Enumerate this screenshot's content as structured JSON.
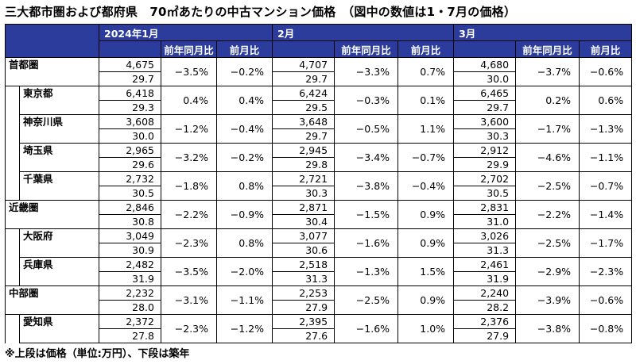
{
  "title": "三大都市圏および都府県　70㎡あたりの中古マンション価格　（図中の数値は1・7月の価格）",
  "note": "※上段は価格（単位:万円）、下段は築年",
  "header": {
    "months": [
      "2024年1月",
      "2月",
      "3月"
    ],
    "yoy": "前年同月比",
    "mom": "前月比"
  },
  "rows": [
    {
      "name": "首都圏",
      "level": "region",
      "m": [
        [
          "4,675",
          "29.7",
          "−3.5%",
          "−0.2%"
        ],
        [
          "4,707",
          "29.7",
          "−3.3%",
          "0.7%"
        ],
        [
          "4,680",
          "30.0",
          "−3.7%",
          "−0.6%"
        ]
      ]
    },
    {
      "name": "東京都",
      "level": "pref",
      "m": [
        [
          "6,418",
          "29.3",
          "0.4%",
          "0.4%"
        ],
        [
          "6,424",
          "29.5",
          "−0.3%",
          "0.1%"
        ],
        [
          "6,465",
          "29.7",
          "0.2%",
          "0.6%"
        ]
      ]
    },
    {
      "name": "神奈川県",
      "level": "pref",
      "m": [
        [
          "3,608",
          "30.0",
          "−1.2%",
          "−0.4%"
        ],
        [
          "3,648",
          "29.7",
          "−0.5%",
          "1.1%"
        ],
        [
          "3,600",
          "30.3",
          "−1.7%",
          "−1.3%"
        ]
      ]
    },
    {
      "name": "埼玉県",
      "level": "pref",
      "m": [
        [
          "2,965",
          "29.6",
          "−3.2%",
          "−0.2%"
        ],
        [
          "2,945",
          "29.8",
          "−3.4%",
          "−0.7%"
        ],
        [
          "2,912",
          "29.9",
          "−4.6%",
          "−1.1%"
        ]
      ]
    },
    {
      "name": "千葉県",
      "level": "pref",
      "m": [
        [
          "2,732",
          "30.5",
          "−1.8%",
          "0.8%"
        ],
        [
          "2,721",
          "30.3",
          "−3.8%",
          "−0.4%"
        ],
        [
          "2,702",
          "30.5",
          "−2.5%",
          "−0.7%"
        ]
      ]
    },
    {
      "name": "近畿圏",
      "level": "region",
      "m": [
        [
          "2,846",
          "30.8",
          "−2.2%",
          "−0.9%"
        ],
        [
          "2,871",
          "30.4",
          "−1.5%",
          "0.9%"
        ],
        [
          "2,831",
          "31.0",
          "−2.2%",
          "−1.4%"
        ]
      ]
    },
    {
      "name": "大阪府",
      "level": "pref",
      "m": [
        [
          "3,049",
          "30.9",
          "−2.3%",
          "0.8%"
        ],
        [
          "3,077",
          "30.6",
          "−1.6%",
          "0.9%"
        ],
        [
          "3,026",
          "31.3",
          "−2.5%",
          "−1.7%"
        ]
      ]
    },
    {
      "name": "兵庫県",
      "level": "pref",
      "m": [
        [
          "2,482",
          "31.9",
          "−3.5%",
          "−2.0%"
        ],
        [
          "2,518",
          "31.3",
          "−1.3%",
          "1.5%"
        ],
        [
          "2,461",
          "31.9",
          "−2.9%",
          "−2.3%"
        ]
      ]
    },
    {
      "name": "中部圏",
      "level": "region",
      "m": [
        [
          "2,232",
          "28.0",
          "−3.1%",
          "−1.1%"
        ],
        [
          "2,253",
          "27.9",
          "−2.5%",
          "0.9%"
        ],
        [
          "2,240",
          "28.2",
          "−3.9%",
          "−0.6%"
        ]
      ]
    },
    {
      "name": "愛知県",
      "level": "pref",
      "m": [
        [
          "2,372",
          "27.8",
          "−2.3%",
          "−1.2%"
        ],
        [
          "2,395",
          "27.6",
          "−1.6%",
          "1.0%"
        ],
        [
          "2,376",
          "27.9",
          "−3.8%",
          "−0.8%"
        ]
      ]
    }
  ]
}
